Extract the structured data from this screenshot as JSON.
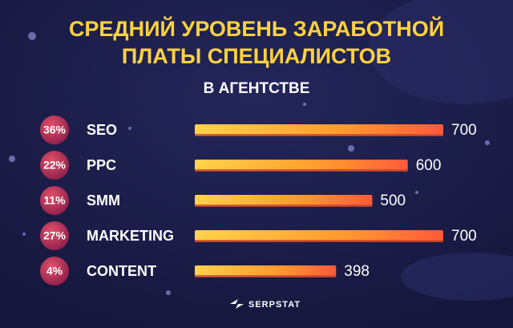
{
  "chart_data": {
    "type": "bar",
    "orientation": "horizontal",
    "title_lines": [
      "СРЕДНИЙ УРОВЕНЬ ЗАРАБОТНОЙ",
      "ПЛАТЫ СПЕЦИАЛИСТОВ"
    ],
    "subtitle": "В АГЕНТСТВЕ",
    "categories": [
      "SEO",
      "PPC",
      "SMM",
      "MARKETING",
      "CONTENT"
    ],
    "values": [
      700,
      600,
      500,
      700,
      398
    ],
    "shares": [
      {
        "value": 36,
        "label": "36%"
      },
      {
        "value": 22,
        "label": "22%"
      },
      {
        "value": 11,
        "label": "11%"
      },
      {
        "value": 27,
        "label": "27%"
      },
      {
        "value": 4,
        "label": "4%"
      }
    ],
    "color": "#ff8a2a",
    "brand": "SERPSTAT"
  }
}
